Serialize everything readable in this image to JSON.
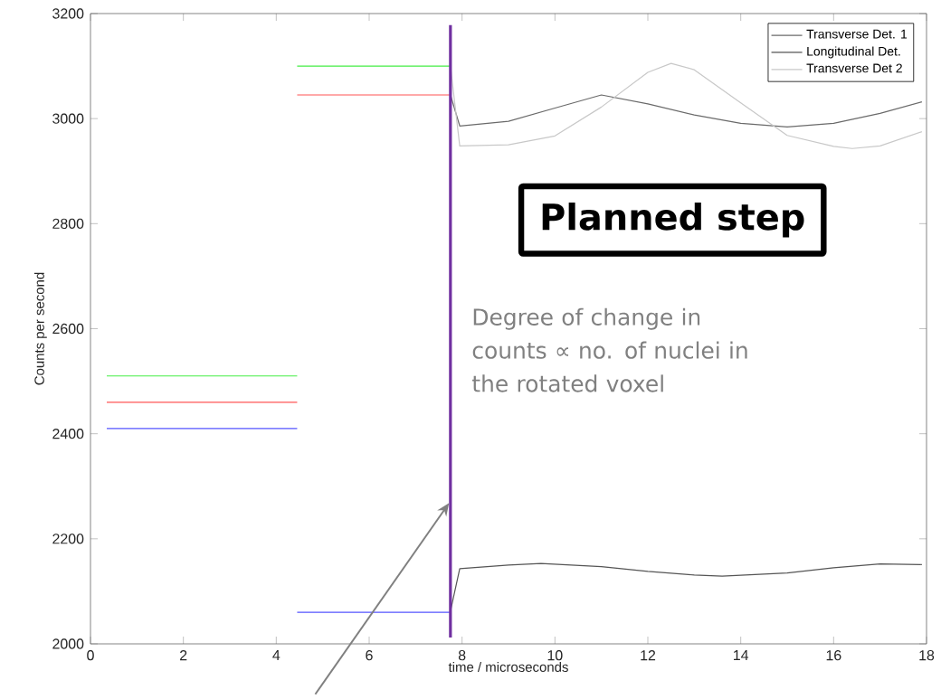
{
  "chart_data": {
    "type": "line",
    "xlabel": "time / microseconds",
    "ylabel": "Counts per second",
    "xlim": [
      0,
      18
    ],
    "xticks": [
      0,
      2,
      4,
      6,
      8,
      10,
      12,
      14,
      16,
      18
    ],
    "ylim": [
      2000,
      3200
    ],
    "yticks": [
      2000,
      2200,
      2400,
      2600,
      2800,
      3000,
      3200
    ],
    "legend": "top right",
    "annotations": [
      "Planned step",
      "Degree of change in counts ∝ no. of nuclei in the rotated voxel"
    ],
    "series": [
      {
        "color": "#44ee44",
        "x": [
          0.35,
          4.45
        ],
        "values": [
          2510,
          2510
        ]
      },
      {
        "color": "#ff5555",
        "x": [
          0.35,
          4.45
        ],
        "values": [
          2460,
          2460
        ]
      },
      {
        "color": "#5555ff",
        "x": [
          0.35,
          4.45
        ],
        "values": [
          2410,
          2410
        ]
      },
      {
        "color": "#44ee44",
        "x": [
          4.45,
          7.75
        ],
        "values": [
          3100,
          3100
        ]
      },
      {
        "color": "#ff5555",
        "x": [
          4.45,
          7.75
        ],
        "values": [
          3045,
          3045
        ]
      },
      {
        "color": "#5555ff",
        "x": [
          4.45,
          7.75
        ],
        "values": [
          2060,
          2060
        ]
      },
      {
        "name": "Transverse Det. 1",
        "color": "#6a6a6a",
        "x": [
          7.75,
          7.95,
          9,
          10,
          11,
          12,
          13,
          14,
          15,
          16,
          17,
          17.9
        ],
        "values": [
          3045,
          2986,
          2995,
          3020,
          3045,
          3028,
          3007,
          2991,
          2984,
          2991,
          3010,
          3032
        ]
      },
      {
        "name": "Longitudinal Det.",
        "color": "#555555",
        "x": [
          7.75,
          7.95,
          9,
          9.7,
          11,
          12,
          13,
          13.6,
          15,
          16,
          17,
          17.9
        ],
        "values": [
          2062,
          2143,
          2150,
          2153,
          2147,
          2138,
          2131,
          2129,
          2135,
          2145,
          2152,
          2151
        ]
      },
      {
        "name": "Transverse Det 2",
        "color": "#c8c8c8",
        "x": [
          7.75,
          7.95,
          9,
          10,
          11,
          12,
          12.5,
          13,
          14,
          15,
          16,
          16.4,
          17,
          17.9
        ],
        "values": [
          3100,
          2948,
          2950,
          2967,
          3022,
          3088,
          3105,
          3093,
          3030,
          2968,
          2947,
          2943,
          2948,
          2975
        ]
      },
      {
        "color": "#7030a0",
        "x": [
          7.75,
          7.75
        ],
        "values": [
          2012,
          3178
        ]
      }
    ]
  }
}
